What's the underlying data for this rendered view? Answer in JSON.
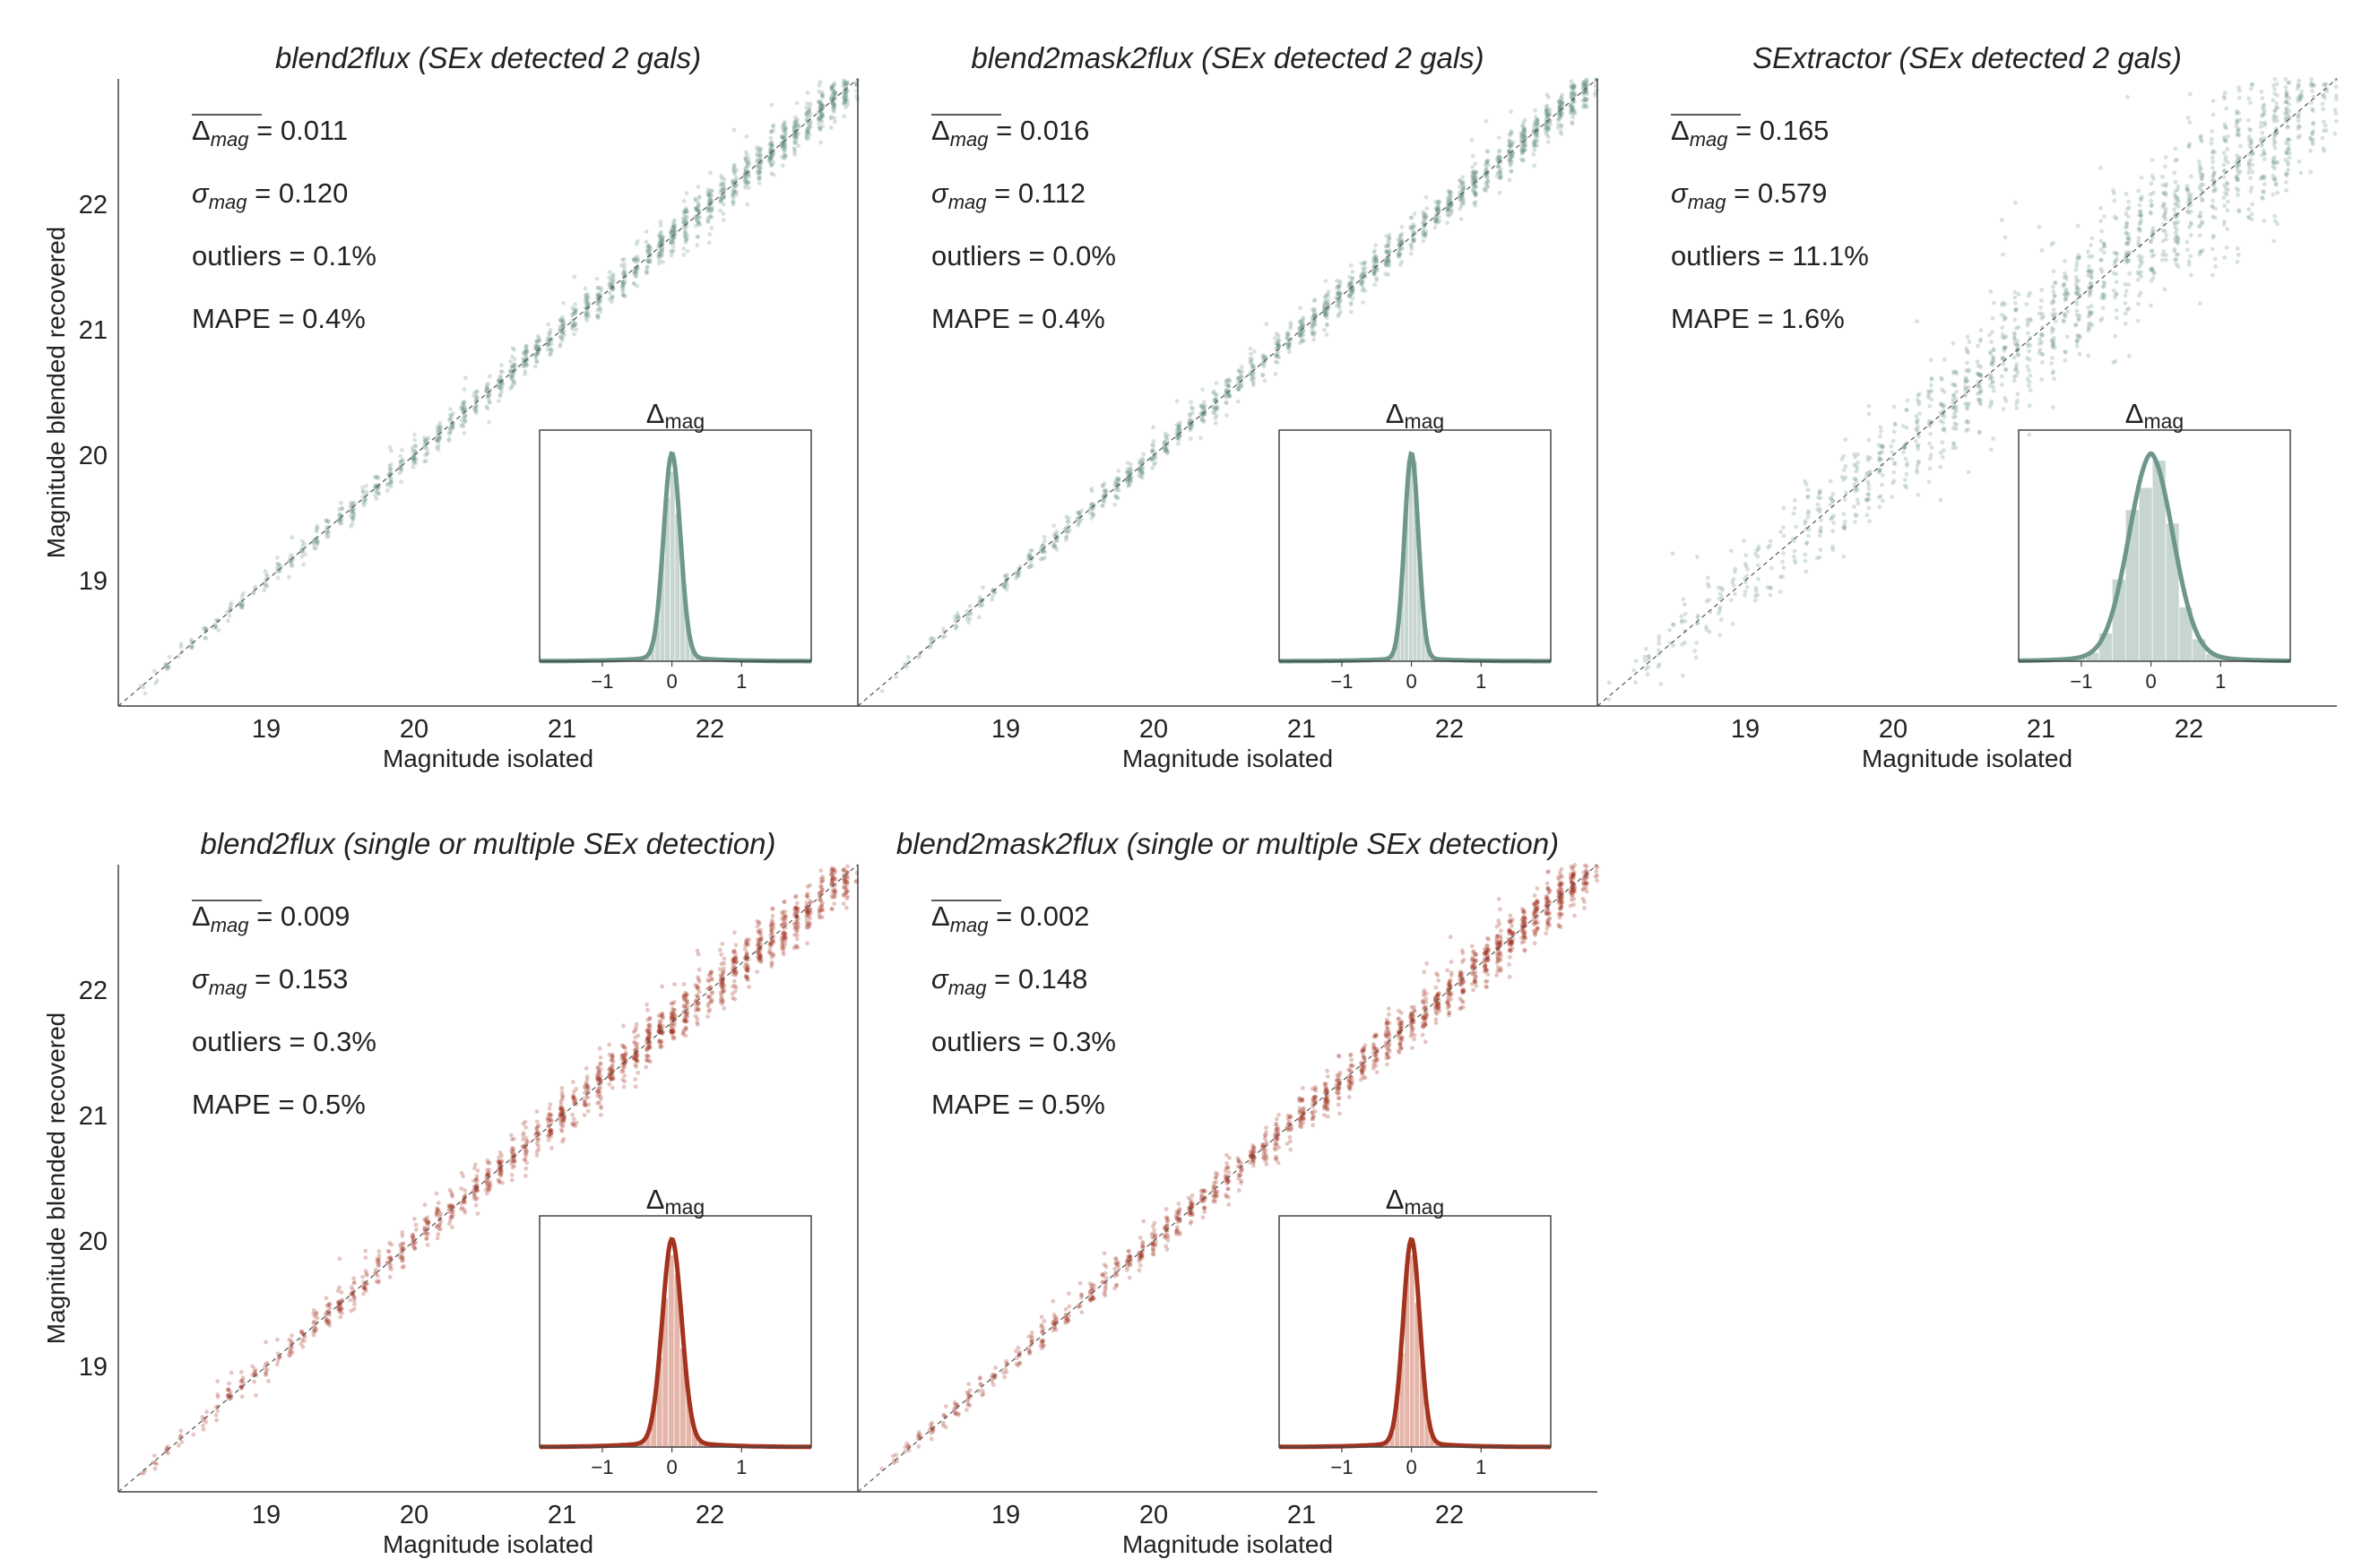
{
  "figure": {
    "xlabel": "Magnitude isolated",
    "ylabel": "Magnitude blended recovered"
  },
  "colors": {
    "green": "#6e968c",
    "green_fill": "#b9ccc5",
    "red": "#a3331f",
    "red_fill": "#dea294",
    "diagonal": "#555555"
  },
  "chart_data": [
    {
      "type": "scatter",
      "title": "blend2flux (SEx detected 2 gals)",
      "color": "green",
      "xlabel": "Magnitude isolated",
      "ylabel": "Magnitude blended recovered",
      "xlim": [
        18.0,
        23.0
      ],
      "ylim": [
        18.0,
        23.0
      ],
      "xticks": [
        19,
        20,
        21,
        22
      ],
      "yticks": [
        19,
        20,
        21,
        22
      ],
      "stats": {
        "delta_mean": "0.011",
        "sigma": "0.120",
        "outliers": "0.1%",
        "mape": "0.4%"
      },
      "spread": 0.12,
      "inset": {
        "title": "Δmag",
        "xlim": [
          -1.9,
          2.0
        ],
        "xticks": [
          -1,
          0,
          1
        ],
        "sigma": 0.12,
        "tail": 0.03
      }
    },
    {
      "type": "scatter",
      "title": "blend2mask2flux (SEx detected 2 gals)",
      "color": "green",
      "xlabel": "Magnitude isolated",
      "ylabel": "",
      "xlim": [
        18.0,
        23.0
      ],
      "ylim": [
        18.0,
        23.0
      ],
      "xticks": [
        19,
        20,
        21,
        22
      ],
      "yticks": [],
      "stats": {
        "delta_mean": "0.016",
        "sigma": "0.112",
        "outliers": "0.0%",
        "mape": "0.4%"
      },
      "spread": 0.11,
      "inset": {
        "title": "Δmag",
        "xlim": [
          -1.9,
          2.0
        ],
        "xticks": [
          -1,
          0,
          1
        ],
        "sigma": 0.1,
        "tail": 0.02
      }
    },
    {
      "type": "scatter",
      "title": "SExtractor (SEx detected 2 gals)",
      "color": "green",
      "xlabel": "Magnitude isolated",
      "ylabel": "",
      "xlim": [
        18.0,
        23.0
      ],
      "ylim": [
        18.0,
        23.0
      ],
      "xticks": [
        19,
        20,
        21,
        22
      ],
      "yticks": [],
      "stats": {
        "delta_mean": "0.165",
        "sigma": "0.579",
        "outliers": "11.1%",
        "mape": "1.6%"
      },
      "spread": 0.45,
      "inset": {
        "title": "Δmag",
        "xlim": [
          -1.9,
          2.0
        ],
        "xticks": [
          -1,
          0,
          1
        ],
        "sigma": 0.32,
        "tail": 0.12
      }
    },
    {
      "type": "scatter",
      "title": "blend2flux (single or multiple SEx detection)",
      "color": "red",
      "xlabel": "Magnitude isolated",
      "ylabel": "Magnitude blended recovered",
      "xlim": [
        18.0,
        23.0
      ],
      "ylim": [
        18.0,
        23.0
      ],
      "xticks": [
        19,
        20,
        21,
        22
      ],
      "yticks": [
        19,
        20,
        21,
        22
      ],
      "stats": {
        "delta_mean": "0.009",
        "sigma": "0.153",
        "outliers": "0.3%",
        "mape": "0.5%"
      },
      "spread": 0.15,
      "inset": {
        "title": "Δmag",
        "xlim": [
          -1.9,
          2.0
        ],
        "xticks": [
          -1,
          0,
          1
        ],
        "sigma": 0.14,
        "tail": 0.04
      }
    },
    {
      "type": "scatter",
      "title": "blend2mask2flux (single or multiple SEx detection)",
      "color": "red",
      "xlabel": "Magnitude isolated",
      "ylabel": "",
      "xlim": [
        18.0,
        23.0
      ],
      "ylim": [
        18.0,
        23.0
      ],
      "xticks": [
        19,
        20,
        21,
        22
      ],
      "yticks": [],
      "stats": {
        "delta_mean": "0.002",
        "sigma": "0.148",
        "outliers": "0.3%",
        "mape": "0.5%"
      },
      "spread": 0.14,
      "inset": {
        "title": "Δmag",
        "xlim": [
          -1.9,
          2.0
        ],
        "xticks": [
          -1,
          0,
          1
        ],
        "sigma": 0.12,
        "tail": 0.03
      }
    }
  ]
}
